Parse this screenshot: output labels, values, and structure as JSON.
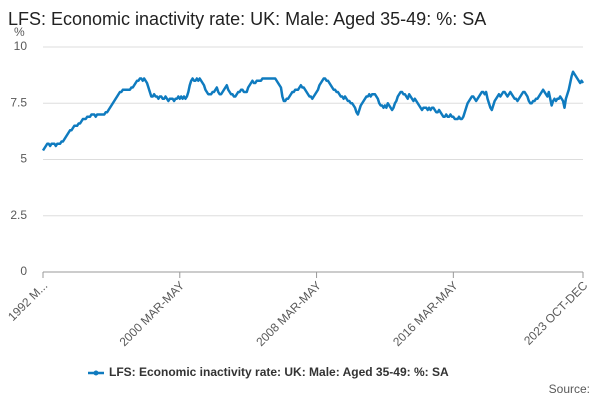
{
  "chart_data": {
    "type": "line",
    "title": "LFS: Economic inactivity rate: UK: Male: Aged 35-49: %: SA",
    "y_label": "%",
    "source": "Source:",
    "categories": [
      "1992 M...",
      null,
      null,
      null,
      null,
      null,
      null,
      null,
      null,
      null,
      null,
      null,
      null,
      null,
      null,
      null,
      null,
      null,
      null,
      null,
      null,
      null,
      null,
      null,
      null,
      null,
      null,
      null,
      null,
      null,
      null,
      null,
      null,
      null,
      null,
      null,
      null,
      null,
      null,
      null,
      null,
      null,
      null,
      null,
      null,
      null,
      null,
      null,
      null,
      null,
      null,
      null,
      null,
      null,
      null,
      null,
      null,
      null,
      null,
      null,
      null,
      null,
      null,
      null,
      null,
      null,
      null,
      null,
      null,
      null,
      null,
      null,
      null,
      null,
      null,
      null,
      null,
      null,
      null,
      null,
      null,
      null,
      null,
      null,
      null,
      null,
      null,
      null,
      null,
      null,
      null,
      null,
      null,
      null,
      null,
      null,
      "2000 MAR-MAY",
      null,
      null,
      null,
      null,
      null,
      null,
      null,
      null,
      null,
      null,
      null,
      null,
      null,
      null,
      null,
      null,
      null,
      null,
      null,
      null,
      null,
      null,
      null,
      null,
      null,
      null,
      null,
      null,
      null,
      null,
      null,
      null,
      null,
      null,
      null,
      null,
      null,
      null,
      null,
      null,
      null,
      null,
      null,
      null,
      null,
      null,
      null,
      null,
      null,
      null,
      null,
      null,
      null,
      null,
      null,
      null,
      null,
      null,
      null,
      null,
      null,
      null,
      null,
      null,
      null,
      null,
      null,
      null,
      null,
      null,
      null,
      null,
      null,
      null,
      null,
      null,
      null,
      null,
      null,
      null,
      null,
      null,
      null,
      null,
      null,
      null,
      null,
      null,
      null,
      null,
      null,
      null,
      null,
      null,
      null,
      "2008 MAR-MAY",
      null,
      null,
      null,
      null,
      null,
      null,
      null,
      null,
      null,
      null,
      null,
      null,
      null,
      null,
      null,
      null,
      null,
      null,
      null,
      null,
      null,
      null,
      null,
      null,
      null,
      null,
      null,
      null,
      null,
      null,
      null,
      null,
      null,
      null,
      null,
      null,
      null,
      null,
      null,
      null,
      null,
      null,
      null,
      null,
      null,
      null,
      null,
      null,
      null,
      null,
      null,
      null,
      null,
      null,
      null,
      null,
      null,
      null,
      null,
      null,
      null,
      null,
      null,
      null,
      null,
      null,
      null,
      null,
      null,
      null,
      null,
      null,
      null,
      null,
      null,
      null,
      null,
      null,
      null,
      null,
      null,
      null,
      null,
      null,
      null,
      null,
      null,
      null,
      null,
      null,
      null,
      null,
      null,
      null,
      null,
      "2016 MAR-MAY",
      null,
      null,
      null,
      null,
      null,
      null,
      null,
      null,
      null,
      null,
      null,
      null,
      null,
      null,
      null,
      null,
      null,
      null,
      null,
      null,
      null,
      null,
      null,
      null,
      null,
      null,
      null,
      null,
      null,
      null,
      null,
      null,
      null,
      null,
      null,
      null,
      null,
      null,
      null,
      null,
      null,
      null,
      null,
      null,
      null,
      null,
      null,
      null,
      null,
      null,
      null,
      null,
      null,
      null,
      null,
      null,
      null,
      null,
      null,
      null,
      null,
      null,
      null,
      null,
      null,
      null,
      null,
      null,
      null,
      null,
      null,
      null,
      null,
      null,
      null,
      null,
      null,
      null,
      null,
      null,
      null,
      null,
      null,
      null,
      null,
      null,
      null,
      null,
      null,
      null,
      "2023 OCT-DEC"
    ],
    "series": [
      {
        "name": "LFS: Economic inactivity rate: UK: Male: Aged 35-49: %: SA",
        "color": "#0f7bbf",
        "values": [
          5.4,
          5.5,
          5.6,
          5.7,
          5.7,
          5.6,
          5.7,
          5.7,
          5.7,
          5.6,
          5.7,
          5.7,
          5.7,
          5.8,
          5.8,
          5.9,
          6.0,
          6.1,
          6.2,
          6.3,
          6.3,
          6.4,
          6.5,
          6.5,
          6.5,
          6.6,
          6.6,
          6.7,
          6.8,
          6.8,
          6.8,
          6.9,
          6.9,
          6.9,
          7.0,
          7.0,
          7.0,
          6.9,
          7.0,
          7.0,
          7.0,
          7.0,
          7.0,
          7.0,
          7.1,
          7.1,
          7.2,
          7.3,
          7.4,
          7.5,
          7.6,
          7.7,
          7.8,
          7.9,
          8.0,
          8.0,
          8.1,
          8.1,
          8.1,
          8.1,
          8.1,
          8.1,
          8.2,
          8.2,
          8.3,
          8.4,
          8.5,
          8.5,
          8.6,
          8.6,
          8.5,
          8.6,
          8.5,
          8.4,
          8.2,
          8.0,
          7.8,
          7.8,
          7.9,
          7.8,
          7.8,
          7.7,
          7.8,
          7.8,
          7.7,
          7.7,
          7.8,
          7.7,
          7.6,
          7.7,
          7.7,
          7.7,
          7.6,
          7.7,
          7.7,
          7.8,
          7.7,
          7.8,
          7.7,
          7.8,
          7.7,
          7.8,
          8.0,
          8.3,
          8.5,
          8.6,
          8.5,
          8.5,
          8.6,
          8.5,
          8.6,
          8.5,
          8.4,
          8.3,
          8.1,
          8.0,
          7.9,
          7.9,
          7.9,
          8.0,
          8.0,
          8.1,
          8.2,
          8.0,
          7.9,
          7.9,
          8.0,
          8.1,
          8.2,
          8.3,
          8.1,
          8.0,
          7.9,
          7.9,
          7.8,
          7.8,
          7.9,
          8.0,
          8.0,
          8.1,
          8.1,
          8.0,
          8.0,
          8.0,
          8.2,
          8.3,
          8.4,
          8.5,
          8.4,
          8.4,
          8.5,
          8.5,
          8.5,
          8.5,
          8.6,
          8.6,
          8.6,
          8.6,
          8.6,
          8.6,
          8.6,
          8.6,
          8.6,
          8.6,
          8.5,
          8.4,
          8.3,
          8.2,
          7.8,
          7.6,
          7.6,
          7.7,
          7.7,
          7.8,
          7.9,
          8.0,
          8.0,
          8.1,
          8.1,
          8.1,
          8.2,
          8.3,
          8.2,
          8.2,
          8.1,
          8.0,
          7.9,
          7.8,
          7.8,
          7.7,
          7.8,
          7.9,
          8.0,
          8.1,
          8.3,
          8.4,
          8.5,
          8.6,
          8.6,
          8.5,
          8.5,
          8.4,
          8.3,
          8.2,
          8.1,
          8.1,
          8.0,
          8.0,
          7.9,
          7.8,
          7.8,
          7.7,
          7.8,
          7.7,
          7.6,
          7.6,
          7.5,
          7.5,
          7.4,
          7.3,
          7.1,
          7.0,
          7.2,
          7.4,
          7.5,
          7.6,
          7.7,
          7.8,
          7.8,
          7.9,
          7.8,
          7.9,
          7.9,
          7.9,
          7.8,
          7.7,
          7.5,
          7.4,
          7.4,
          7.3,
          7.4,
          7.3,
          7.5,
          7.4,
          7.3,
          7.2,
          7.3,
          7.5,
          7.6,
          7.8,
          7.9,
          8.0,
          8.0,
          7.9,
          7.9,
          7.8,
          7.7,
          7.9,
          7.8,
          7.7,
          7.6,
          7.7,
          7.6,
          7.5,
          7.4,
          7.3,
          7.2,
          7.3,
          7.3,
          7.3,
          7.2,
          7.3,
          7.2,
          7.3,
          7.3,
          7.2,
          7.1,
          7.1,
          7.2,
          7.1,
          7.0,
          6.9,
          6.9,
          7.0,
          6.9,
          6.9,
          7.0,
          6.9,
          6.9,
          6.8,
          6.8,
          6.8,
          6.9,
          6.8,
          6.8,
          6.9,
          7.1,
          7.3,
          7.5,
          7.6,
          7.7,
          7.8,
          7.8,
          7.7,
          7.6,
          7.7,
          7.8,
          7.9,
          8.0,
          8.0,
          7.9,
          8.0,
          7.7,
          7.5,
          7.3,
          7.2,
          7.4,
          7.6,
          7.7,
          7.8,
          7.9,
          7.8,
          7.9,
          8.0,
          8.0,
          7.9,
          7.8,
          7.9,
          8.0,
          7.9,
          7.8,
          7.7,
          7.7,
          7.6,
          7.7,
          7.8,
          7.9,
          8.0,
          8.0,
          7.9,
          7.8,
          7.6,
          7.5,
          7.5,
          7.6,
          7.6,
          7.7,
          7.7,
          7.8,
          7.9,
          8.0,
          8.1,
          8.0,
          7.9,
          7.8,
          8.0,
          7.7,
          7.4,
          7.6,
          7.7,
          7.6,
          7.7,
          7.7,
          7.8,
          7.7,
          7.6,
          7.3,
          7.7,
          7.9,
          8.1,
          8.4,
          8.7,
          8.9,
          8.8,
          8.7,
          8.6,
          8.5,
          8.4,
          8.5,
          8.4
        ]
      }
    ],
    "ylim": [
      0,
      10
    ],
    "yticks": [
      0,
      2.5,
      5,
      7.5,
      10
    ],
    "grid": true,
    "legend": "bottom"
  }
}
